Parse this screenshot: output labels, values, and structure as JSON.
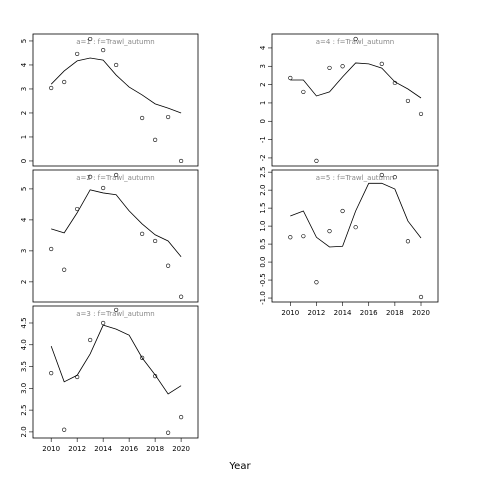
{
  "xlabel": "Year",
  "chart_data": [
    {
      "type": "line",
      "title": "a=1 : f=Trawl_autumn",
      "x": [
        2010,
        2011,
        2012,
        2013,
        2014,
        2015,
        2016,
        2017,
        2018,
        2019,
        2020
      ],
      "xlim": [
        2008.6,
        2021.3
      ],
      "ylim": [
        -0.21,
        5.29
      ],
      "yticks": [
        0,
        1,
        2,
        3,
        4,
        5
      ],
      "series": [
        {
          "color": "#000000",
          "marker": "circle",
          "values": [
            3.04,
            3.29,
            4.46,
            5.08,
            4.62,
            4.0,
            null,
            1.79,
            0.88,
            1.83,
            0
          ]
        },
        {
          "color": "#000000",
          "line": true,
          "values": [
            3.2,
            3.75,
            4.17,
            4.29,
            4.2,
            3.58,
            3.08,
            2.75,
            2.38,
            2.2,
            2.0
          ]
        }
      ]
    },
    {
      "type": "line",
      "title": "a=4 : f=Trawl_autumn",
      "x": [
        2010,
        2011,
        2012,
        2013,
        2014,
        2015,
        2016,
        2017,
        2018,
        2019,
        2020
      ],
      "xlim": [
        2008.6,
        2021.3
      ],
      "ylim": [
        -2.44,
        4.76
      ],
      "yticks": [
        -2,
        -1,
        0,
        1,
        2,
        3,
        4
      ],
      "series": [
        {
          "color": "#000000",
          "marker": "circle",
          "values": [
            2.36,
            1.6,
            -2.16,
            2.91,
            3.0,
            4.49,
            null,
            3.13,
            2.09,
            1.11,
            0.4
          ]
        },
        {
          "color": "#000000",
          "line": true,
          "values": [
            2.25,
            2.25,
            1.38,
            1.6,
            2.42,
            3.18,
            3.13,
            2.9,
            2.15,
            1.76,
            1.27
          ]
        }
      ]
    },
    {
      "type": "line",
      "title": "a=2 : f=Trawl_autumn",
      "x": [
        2010,
        2011,
        2012,
        2013,
        2014,
        2015,
        2016,
        2017,
        2018,
        2019,
        2020
      ],
      "xlim": [
        2008.6,
        2021.3
      ],
      "ylim": [
        1.35,
        5.61
      ],
      "yticks": [
        2,
        3,
        4,
        5
      ],
      "series": [
        {
          "color": "#000000",
          "marker": "circle",
          "values": [
            3.06,
            2.39,
            4.35,
            5.39,
            5.03,
            5.45,
            null,
            3.55,
            3.32,
            2.52,
            1.52
          ]
        },
        {
          "color": "#000000",
          "line": true,
          "values": [
            3.71,
            3.58,
            4.23,
            4.97,
            4.87,
            4.81,
            4.29,
            3.87,
            3.52,
            3.32,
            2.81
          ]
        }
      ]
    },
    {
      "type": "line",
      "title": "a=5 : f=Trawl_autumn",
      "x": [
        2010,
        2011,
        2012,
        2013,
        2014,
        2015,
        2016,
        2017,
        2018,
        2019,
        2020
      ],
      "xlim": [
        2008.6,
        2021.3
      ],
      "xticks": [
        2010,
        2012,
        2014,
        2016,
        2018,
        2020
      ],
      "ylim": [
        -1.11,
        2.56
      ],
      "yticks": [
        {
          "value": -1,
          "label": "-1.0"
        },
        -0.5,
        {
          "value": 0,
          "label": "0.0"
        },
        0.5,
        {
          "value": 1,
          "label": "1.0"
        },
        1.5,
        {
          "value": 2,
          "label": "2.0"
        },
        2.5
      ],
      "series": [
        {
          "color": "#000000",
          "marker": "circle",
          "values": [
            0.69,
            0.72,
            -0.56,
            0.86,
            1.42,
            0.97,
            null,
            2.42,
            2.36,
            0.58,
            -0.97
          ]
        },
        {
          "color": "#000000",
          "line": true,
          "values": [
            1.28,
            1.42,
            0.69,
            0.42,
            0.44,
            1.42,
            2.19,
            2.19,
            2.03,
            1.14,
            0.67
          ]
        }
      ]
    },
    {
      "type": "line",
      "title": "a=3 : f=Trawl_autumn",
      "x": [
        2010,
        2011,
        2012,
        2013,
        2014,
        2015,
        2016,
        2017,
        2018,
        2019,
        2020
      ],
      "xlim": [
        2008.6,
        2021.3
      ],
      "xticks": [
        2010,
        2012,
        2014,
        2016,
        2018,
        2020
      ],
      "ylim": [
        1.86,
        4.89
      ],
      "yticks": [
        {
          "value": 2,
          "label": "2.0"
        },
        2.5,
        {
          "value": 3,
          "label": "3.0"
        },
        3.5,
        {
          "value": 4,
          "label": "4.0"
        },
        4.5
      ],
      "series": [
        {
          "color": "#000000",
          "marker": "circle",
          "values": [
            3.35,
            2.05,
            3.26,
            4.11,
            4.5,
            4.8,
            null,
            3.7,
            3.28,
            1.98,
            2.34
          ]
        },
        {
          "color": "#000000",
          "line": true,
          "values": [
            3.97,
            3.15,
            3.3,
            3.79,
            4.45,
            4.36,
            4.22,
            3.7,
            3.31,
            2.87,
            3.06
          ]
        }
      ]
    }
  ]
}
